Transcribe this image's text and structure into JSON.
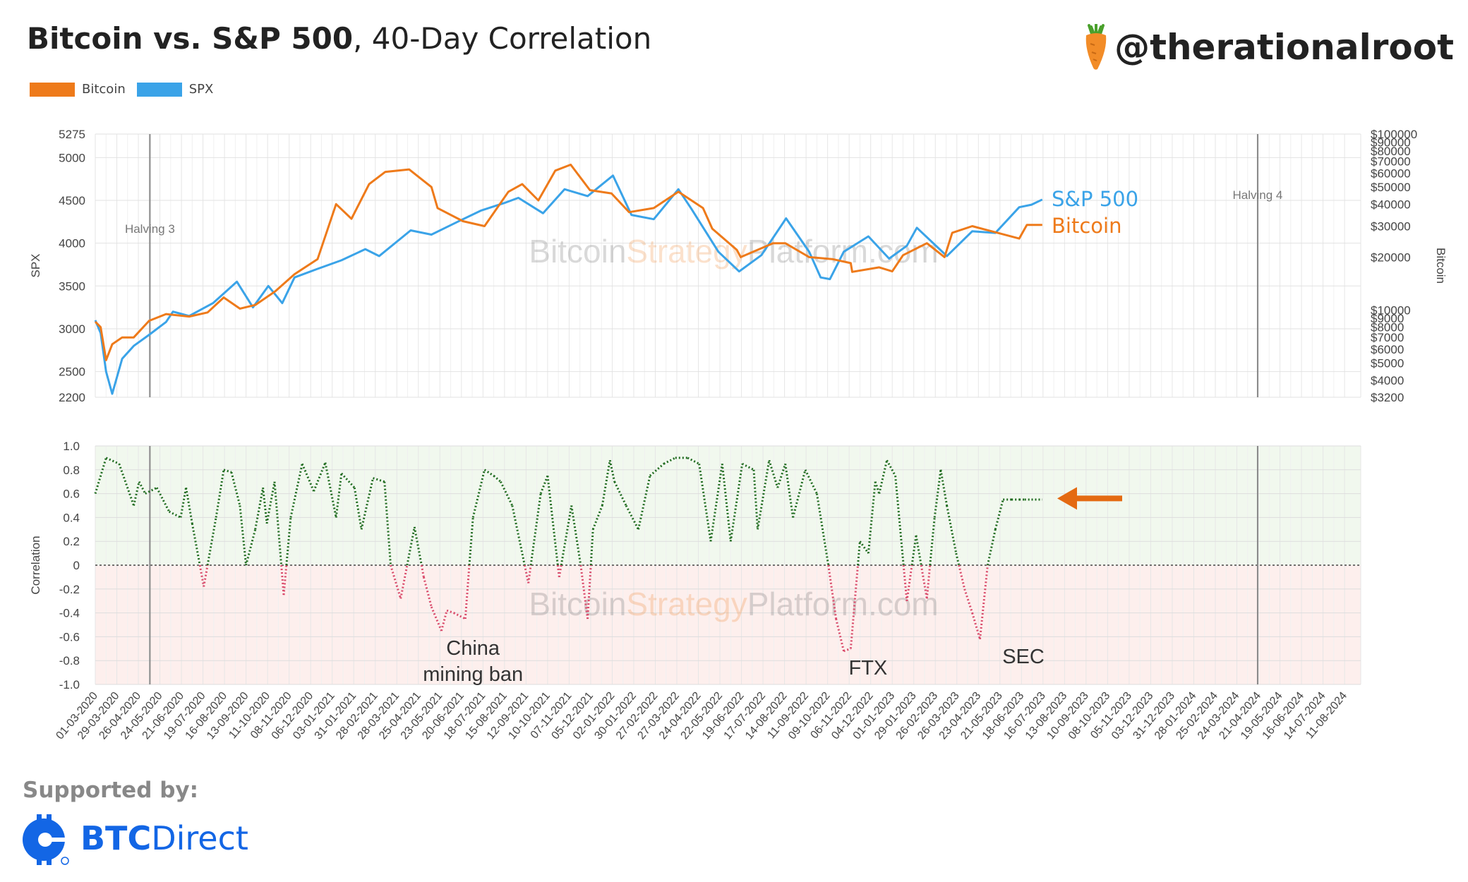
{
  "header": {
    "title_bold": "Bitcoin vs. S&P 500",
    "title_rest": ", 40-Day Correlation",
    "handle": "@therationalroot"
  },
  "legend": [
    {
      "name": "Bitcoin",
      "color": "#ee7a1a"
    },
    {
      "name": "SPX",
      "color": "#3aa3e8"
    }
  ],
  "footer": {
    "supported_label": "Supported by:",
    "sponsor_bold": "BTC",
    "sponsor_rest": "Direct"
  },
  "chart_data": [
    {
      "type": "line",
      "panel": "top",
      "ylabel": "SPX",
      "y2label": "Bitcoin",
      "y_left_ticks": [
        2200,
        2500,
        3000,
        3500,
        4000,
        4500,
        5000,
        5275
      ],
      "y_right_ticks": [
        "$3200",
        "$4000",
        "$5000",
        "$6000",
        "$7000",
        "$8000",
        "$9000",
        "$10000",
        "$20000",
        "$30000",
        "$40000",
        "$50000",
        "$60000",
        "$70000",
        "$80000",
        "$90000",
        "$100000"
      ],
      "y_right_scale": "log",
      "ylim": [
        2200,
        5275
      ],
      "y2lim": [
        3200,
        100000
      ],
      "watermark": "BitcoinStrategyPlatform.com",
      "vertical_markers": [
        {
          "label": "Halving 3",
          "date": "2020-05-11"
        },
        {
          "label": "Halving 4",
          "date": "2024-04-20"
        }
      ],
      "end_labels": [
        {
          "text": "S&P 500",
          "color": "#3aa3e8"
        },
        {
          "text": "Bitcoin",
          "color": "#ee7a1a"
        }
      ],
      "series": [
        {
          "name": "SPX",
          "color": "#3aa3e8",
          "x": [
            "2020-03-01",
            "2020-03-08",
            "2020-03-15",
            "2020-03-23",
            "2020-04-05",
            "2020-04-20",
            "2020-05-10",
            "2020-06-01",
            "2020-06-10",
            "2020-07-01",
            "2020-08-01",
            "2020-09-01",
            "2020-09-22",
            "2020-10-12",
            "2020-10-30",
            "2020-11-15",
            "2020-12-15",
            "2021-01-15",
            "2021-02-15",
            "2021-03-05",
            "2021-04-15",
            "2021-05-12",
            "2021-06-15",
            "2021-07-15",
            "2021-08-15",
            "2021-09-02",
            "2021-10-04",
            "2021-11-01",
            "2021-12-01",
            "2022-01-03",
            "2022-01-27",
            "2022-02-25",
            "2022-03-29",
            "2022-04-15",
            "2022-05-20",
            "2022-06-16",
            "2022-07-15",
            "2022-08-16",
            "2022-09-15",
            "2022-09-30",
            "2022-10-12",
            "2022-10-30",
            "2022-11-15",
            "2022-12-01",
            "2022-12-28",
            "2023-01-20",
            "2023-02-02",
            "2023-03-13",
            "2023-04-15",
            "2023-05-15",
            "2023-06-15",
            "2023-07-01",
            "2023-07-15"
          ],
          "values": [
            3100,
            2950,
            2500,
            2240,
            2650,
            2800,
            2930,
            3080,
            3200,
            3150,
            3300,
            3550,
            3250,
            3500,
            3300,
            3600,
            3700,
            3800,
            3930,
            3850,
            4150,
            4100,
            4250,
            4380,
            4470,
            4530,
            4350,
            4630,
            4550,
            4790,
            4330,
            4280,
            4630,
            4400,
            3900,
            3670,
            3860,
            4290,
            3900,
            3600,
            3580,
            3900,
            3990,
            4080,
            3820,
            3970,
            4180,
            3850,
            4140,
            4120,
            4420,
            4450,
            4510
          ]
        },
        {
          "name": "Bitcoin",
          "color": "#ee7a1a",
          "x": [
            "2020-03-01",
            "2020-03-08",
            "2020-03-15",
            "2020-03-23",
            "2020-04-05",
            "2020-04-20",
            "2020-05-10",
            "2020-06-01",
            "2020-07-01",
            "2020-07-25",
            "2020-08-15",
            "2020-09-05",
            "2020-09-25",
            "2020-10-21",
            "2020-11-15",
            "2020-12-15",
            "2021-01-08",
            "2021-01-28",
            "2021-02-20",
            "2021-03-13",
            "2021-04-13",
            "2021-05-12",
            "2021-05-20",
            "2021-06-22",
            "2021-07-20",
            "2021-08-20",
            "2021-09-07",
            "2021-09-28",
            "2021-10-20",
            "2021-11-09",
            "2021-12-04",
            "2022-01-01",
            "2022-01-24",
            "2022-02-25",
            "2022-03-29",
            "2022-04-30",
            "2022-05-12",
            "2022-06-13",
            "2022-06-18",
            "2022-07-30",
            "2022-08-15",
            "2022-09-15",
            "2022-10-15",
            "2022-11-08",
            "2022-11-10",
            "2022-12-15",
            "2023-01-01",
            "2023-01-15",
            "2023-02-15",
            "2023-03-10",
            "2023-03-20",
            "2023-04-15",
            "2023-06-15",
            "2023-06-25",
            "2023-07-15"
          ],
          "values": [
            8600,
            8000,
            5200,
            6400,
            7000,
            7000,
            8700,
            9500,
            9200,
            9700,
            11800,
            10200,
            10700,
            12800,
            16000,
            19500,
            40000,
            33000,
            52000,
            61000,
            63000,
            50000,
            38000,
            32000,
            30000,
            47000,
            52000,
            42000,
            62000,
            67000,
            48000,
            46000,
            36000,
            38000,
            47000,
            38000,
            29000,
            22000,
            20000,
            24000,
            24000,
            20000,
            19500,
            18500,
            16500,
            17500,
            16600,
            20500,
            24000,
            20000,
            27500,
            30000,
            25500,
            30500,
            30500
          ]
        }
      ]
    },
    {
      "type": "line",
      "panel": "bottom",
      "ylabel": "Correlation",
      "ylim": [
        -1.0,
        1.0
      ],
      "y_ticks": [
        "1.0",
        "0.8",
        "0.6",
        "0.4",
        "0.2",
        "0",
        "-0.2",
        "-0.4",
        "-0.6",
        "-0.8",
        "-1.0"
      ],
      "x_ticks": [
        "01-03-2020",
        "29-03-2020",
        "26-04-2020",
        "24-05-2020",
        "21-06-2020",
        "19-07-2020",
        "16-08-2020",
        "13-09-2020",
        "11-10-2020",
        "08-11-2020",
        "06-12-2020",
        "03-01-2021",
        "31-01-2021",
        "28-02-2021",
        "28-03-2021",
        "25-04-2021",
        "23-05-2021",
        "20-06-2021",
        "18-07-2021",
        "15-08-2021",
        "12-09-2021",
        "10-10-2021",
        "07-11-2021",
        "05-12-2021",
        "02-01-2022",
        "30-01-2022",
        "27-02-2022",
        "27-03-2022",
        "24-04-2022",
        "22-05-2022",
        "19-06-2022",
        "17-07-2022",
        "14-08-2022",
        "11-09-2022",
        "09-10-2022",
        "06-11-2022",
        "04-12-2022",
        "01-01-2023",
        "29-01-2023",
        "26-02-2023",
        "26-03-2023",
        "23-04-2023",
        "21-05-2023",
        "18-06-2023",
        "16-07-2023",
        "13-08-2023",
        "10-09-2023",
        "08-10-2023",
        "05-11-2023",
        "03-12-2023",
        "31-12-2023",
        "28-01-2024",
        "25-02-2024",
        "24-03-2024",
        "21-04-2024",
        "19-05-2024",
        "16-06-2024",
        "14-07-2024",
        "11-08-2024"
      ],
      "x_range": [
        "2020-03-01",
        "2024-09-01"
      ],
      "watermark": "BitcoinStrategyPlatform.com",
      "positive_color": "#1f6b1f",
      "negative_color": "#d94a6a",
      "annotations": [
        {
          "text": "China",
          "text2": "mining ban",
          "date": "2021-07-05"
        },
        {
          "text": "FTX",
          "date": "2022-11-25"
        },
        {
          "text": "SEC",
          "date": "2023-06-15"
        }
      ],
      "series": [
        {
          "name": "",
          "x": [
            "2020-03-01",
            "2020-03-15",
            "2020-04-01",
            "2020-04-20",
            "2020-04-27",
            "2020-05-05",
            "2020-05-20",
            "2020-06-05",
            "2020-06-20",
            "2020-06-27",
            "2020-07-05",
            "2020-07-15",
            "2020-07-20",
            "2020-08-05",
            "2020-08-15",
            "2020-08-25",
            "2020-09-05",
            "2020-09-13",
            "2020-09-25",
            "2020-10-05",
            "2020-10-10",
            "2020-10-20",
            "2020-11-01",
            "2020-11-10",
            "2020-11-25",
            "2020-12-10",
            "2020-12-25",
            "2021-01-08",
            "2021-01-15",
            "2021-02-01",
            "2021-02-10",
            "2021-02-25",
            "2021-03-12",
            "2021-03-20",
            "2021-04-02",
            "2021-04-20",
            "2021-05-02",
            "2021-05-12",
            "2021-05-25",
            "2021-06-01",
            "2021-06-10",
            "2021-06-25",
            "2021-07-05",
            "2021-07-20",
            "2021-08-01",
            "2021-08-10",
            "2021-08-25",
            "2021-09-15",
            "2021-10-01",
            "2021-10-10",
            "2021-10-25",
            "2021-11-10",
            "2021-11-22",
            "2021-12-01",
            "2021-12-08",
            "2021-12-20",
            "2021-12-30",
            "2022-01-05",
            "2022-01-20",
            "2022-02-05",
            "2022-02-20",
            "2022-03-10",
            "2022-03-25",
            "2022-04-10",
            "2022-04-25",
            "2022-05-10",
            "2022-05-25",
            "2022-06-05",
            "2022-06-20",
            "2022-07-05",
            "2022-07-10",
            "2022-07-25",
            "2022-08-05",
            "2022-08-15",
            "2022-08-25",
            "2022-09-10",
            "2022-09-25",
            "2022-10-10",
            "2022-10-20",
            "2022-10-30",
            "2022-11-08",
            "2022-11-20",
            "2022-12-01",
            "2022-12-10",
            "2022-12-15",
            "2022-12-25",
            "2023-01-05",
            "2023-01-20",
            "2023-02-01",
            "2023-02-15",
            "2023-02-25",
            "2023-03-05",
            "2023-03-13",
            "2023-03-25",
            "2023-04-05",
            "2023-04-15",
            "2023-04-25",
            "2023-05-05",
            "2023-05-15",
            "2023-05-25",
            "2023-06-05",
            "2023-06-15",
            "2023-06-22",
            "2023-07-01",
            "2023-07-15"
          ],
          "values": [
            0.6,
            0.9,
            0.85,
            0.5,
            0.7,
            0.6,
            0.65,
            0.45,
            0.4,
            0.65,
            0.35,
            0.0,
            -0.18,
            0.4,
            0.8,
            0.78,
            0.5,
            0.0,
            0.3,
            0.65,
            0.35,
            0.7,
            -0.25,
            0.4,
            0.85,
            0.62,
            0.86,
            0.4,
            0.77,
            0.65,
            0.3,
            0.73,
            0.7,
            0.0,
            -0.28,
            0.32,
            -0.1,
            -0.35,
            -0.55,
            -0.38,
            -0.4,
            -0.45,
            0.4,
            0.8,
            0.75,
            0.7,
            0.5,
            -0.15,
            0.6,
            0.75,
            -0.1,
            0.5,
            0.0,
            -0.45,
            0.3,
            0.5,
            0.88,
            0.7,
            0.5,
            0.3,
            0.75,
            0.85,
            0.9,
            0.9,
            0.85,
            0.2,
            0.85,
            0.2,
            0.85,
            0.8,
            0.3,
            0.88,
            0.65,
            0.85,
            0.4,
            0.8,
            0.6,
            0.0,
            -0.45,
            -0.72,
            -0.7,
            0.2,
            0.1,
            0.7,
            0.6,
            0.88,
            0.75,
            -0.3,
            0.25,
            -0.28,
            0.4,
            0.8,
            0.5,
            0.1,
            -0.2,
            -0.4,
            -0.62,
            0.0,
            0.3,
            0.55,
            0.55,
            0.55,
            0.55,
            0.55,
            0.55
          ]
        }
      ]
    }
  ]
}
